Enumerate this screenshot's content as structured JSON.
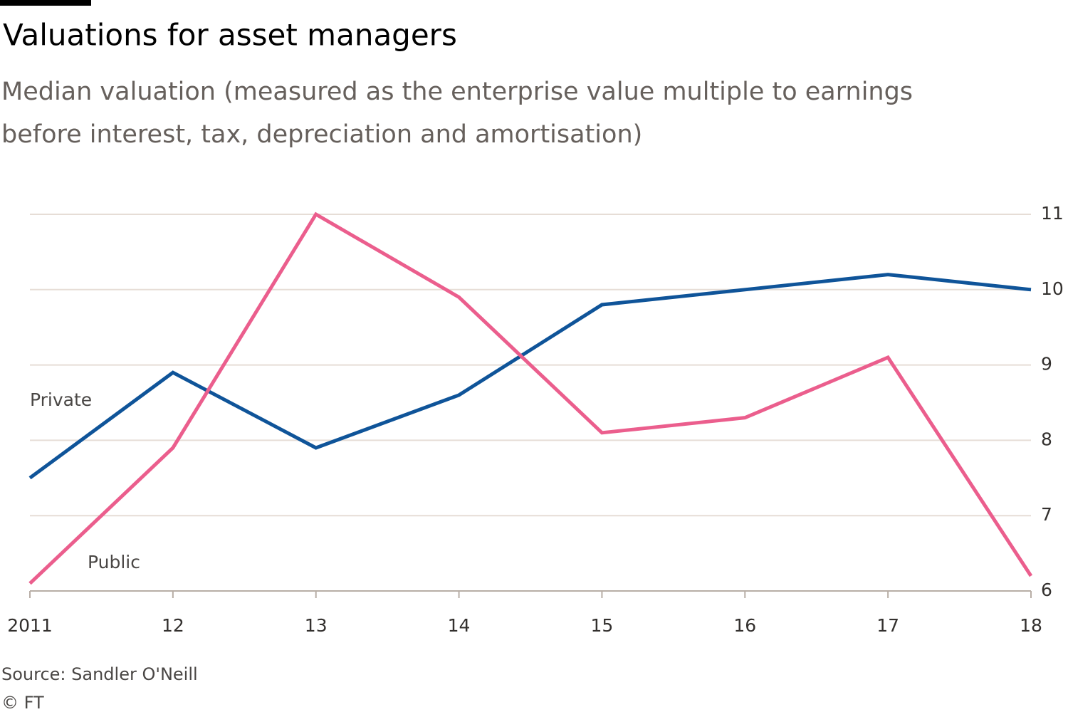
{
  "chart_data": {
    "type": "line",
    "title": "Valuations for asset managers",
    "subtitle_lines": [
      "Median valuation (measured as the enterprise value multiple to earnings",
      "before interest, tax, depreciation and amortisation)"
    ],
    "categories": [
      "2011",
      "12",
      "13",
      "14",
      "15",
      "16",
      "17",
      "18"
    ],
    "series": [
      {
        "name": "Private",
        "color": "#0f5499",
        "values": [
          7.5,
          8.9,
          7.9,
          8.6,
          9.8,
          10.0,
          10.2,
          10.0
        ]
      },
      {
        "name": "Public",
        "color": "#eb5e8d",
        "values": [
          6.1,
          7.9,
          11.0,
          9.9,
          8.1,
          8.3,
          9.1,
          6.2
        ]
      }
    ],
    "ylim": [
      6,
      11
    ],
    "yticks": [
      6,
      7,
      8,
      9,
      10,
      11
    ],
    "y_axis_side": "right",
    "grid": true,
    "source": "Source: Sandler O'Neill",
    "credit": "© FT"
  }
}
